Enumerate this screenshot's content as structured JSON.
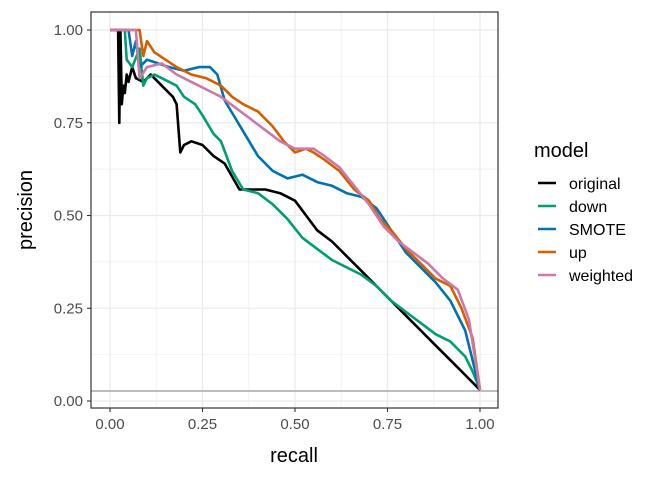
{
  "chart_data": {
    "type": "line",
    "title": "",
    "xlabel": "recall",
    "ylabel": "precision",
    "xlim": [
      0,
      1
    ],
    "ylim": [
      0,
      1
    ],
    "x_ticks": [
      "0.00",
      "0.25",
      "0.50",
      "0.75",
      "1.00"
    ],
    "y_ticks": [
      "0.00",
      "0.25",
      "0.50",
      "0.75",
      "1.00"
    ],
    "grid": true,
    "legend": {
      "title": "model",
      "placement": "right"
    },
    "baseline": {
      "y": 0.027,
      "color": "#bdbdbd"
    },
    "series": [
      {
        "name": "original",
        "color": "#000000",
        "points": [
          [
            0.0,
            1.0
          ],
          [
            0.022,
            1.0
          ],
          [
            0.025,
            0.75
          ],
          [
            0.028,
            1.0
          ],
          [
            0.032,
            0.8
          ],
          [
            0.036,
            0.85
          ],
          [
            0.04,
            0.83
          ],
          [
            0.045,
            0.88
          ],
          [
            0.05,
            0.86
          ],
          [
            0.06,
            0.9
          ],
          [
            0.07,
            0.87
          ],
          [
            0.09,
            0.86
          ],
          [
            0.11,
            0.88
          ],
          [
            0.13,
            0.86
          ],
          [
            0.15,
            0.84
          ],
          [
            0.17,
            0.82
          ],
          [
            0.18,
            0.8
          ],
          [
            0.19,
            0.67
          ],
          [
            0.2,
            0.69
          ],
          [
            0.22,
            0.7
          ],
          [
            0.25,
            0.69
          ],
          [
            0.28,
            0.66
          ],
          [
            0.31,
            0.64
          ],
          [
            0.35,
            0.57
          ],
          [
            0.38,
            0.57
          ],
          [
            0.42,
            0.57
          ],
          [
            0.46,
            0.56
          ],
          [
            0.5,
            0.54
          ],
          [
            0.53,
            0.5
          ],
          [
            0.56,
            0.46
          ],
          [
            0.6,
            0.43
          ],
          [
            0.64,
            0.39
          ],
          [
            0.68,
            0.35
          ],
          [
            0.72,
            0.31
          ],
          [
            0.76,
            0.27
          ],
          [
            0.8,
            0.23
          ],
          [
            0.84,
            0.19
          ],
          [
            0.88,
            0.15
          ],
          [
            0.92,
            0.11
          ],
          [
            0.96,
            0.07
          ],
          [
            1.0,
            0.03
          ]
        ]
      },
      {
        "name": "down",
        "color": "#009E73",
        "points": [
          [
            0.0,
            1.0
          ],
          [
            0.04,
            1.0
          ],
          [
            0.045,
            0.92
          ],
          [
            0.06,
            0.9
          ],
          [
            0.08,
            0.95
          ],
          [
            0.09,
            0.85
          ],
          [
            0.1,
            0.87
          ],
          [
            0.12,
            0.88
          ],
          [
            0.14,
            0.87
          ],
          [
            0.16,
            0.86
          ],
          [
            0.18,
            0.85
          ],
          [
            0.2,
            0.82
          ],
          [
            0.23,
            0.8
          ],
          [
            0.25,
            0.77
          ],
          [
            0.28,
            0.72
          ],
          [
            0.3,
            0.7
          ],
          [
            0.33,
            0.62
          ],
          [
            0.36,
            0.57
          ],
          [
            0.4,
            0.56
          ],
          [
            0.44,
            0.53
          ],
          [
            0.48,
            0.49
          ],
          [
            0.52,
            0.44
          ],
          [
            0.56,
            0.41
          ],
          [
            0.6,
            0.38
          ],
          [
            0.64,
            0.36
          ],
          [
            0.68,
            0.34
          ],
          [
            0.72,
            0.31
          ],
          [
            0.76,
            0.27
          ],
          [
            0.8,
            0.24
          ],
          [
            0.84,
            0.21
          ],
          [
            0.88,
            0.18
          ],
          [
            0.92,
            0.16
          ],
          [
            0.96,
            0.12
          ],
          [
            0.98,
            0.08
          ],
          [
            1.0,
            0.03
          ]
        ]
      },
      {
        "name": "SMOTE",
        "color": "#0072B2",
        "points": [
          [
            0.0,
            1.0
          ],
          [
            0.05,
            1.0
          ],
          [
            0.06,
            0.93
          ],
          [
            0.07,
            0.97
          ],
          [
            0.08,
            0.9
          ],
          [
            0.1,
            0.92
          ],
          [
            0.13,
            0.91
          ],
          [
            0.16,
            0.9
          ],
          [
            0.2,
            0.89
          ],
          [
            0.24,
            0.9
          ],
          [
            0.27,
            0.9
          ],
          [
            0.29,
            0.88
          ],
          [
            0.31,
            0.81
          ],
          [
            0.34,
            0.76
          ],
          [
            0.37,
            0.71
          ],
          [
            0.4,
            0.66
          ],
          [
            0.44,
            0.62
          ],
          [
            0.48,
            0.6
          ],
          [
            0.52,
            0.61
          ],
          [
            0.56,
            0.59
          ],
          [
            0.6,
            0.58
          ],
          [
            0.64,
            0.56
          ],
          [
            0.68,
            0.55
          ],
          [
            0.72,
            0.52
          ],
          [
            0.76,
            0.46
          ],
          [
            0.8,
            0.4
          ],
          [
            0.84,
            0.36
          ],
          [
            0.88,
            0.32
          ],
          [
            0.92,
            0.27
          ],
          [
            0.96,
            0.19
          ],
          [
            1.0,
            0.03
          ]
        ]
      },
      {
        "name": "up",
        "color": "#D55E00",
        "points": [
          [
            0.0,
            1.0
          ],
          [
            0.08,
            1.0
          ],
          [
            0.09,
            0.93
          ],
          [
            0.1,
            0.97
          ],
          [
            0.12,
            0.94
          ],
          [
            0.15,
            0.92
          ],
          [
            0.18,
            0.9
          ],
          [
            0.22,
            0.88
          ],
          [
            0.26,
            0.87
          ],
          [
            0.3,
            0.85
          ],
          [
            0.33,
            0.82
          ],
          [
            0.36,
            0.8
          ],
          [
            0.4,
            0.78
          ],
          [
            0.44,
            0.74
          ],
          [
            0.47,
            0.7
          ],
          [
            0.5,
            0.67
          ],
          [
            0.53,
            0.68
          ],
          [
            0.55,
            0.67
          ],
          [
            0.58,
            0.65
          ],
          [
            0.62,
            0.62
          ],
          [
            0.66,
            0.57
          ],
          [
            0.7,
            0.54
          ],
          [
            0.73,
            0.49
          ],
          [
            0.76,
            0.46
          ],
          [
            0.8,
            0.41
          ],
          [
            0.84,
            0.37
          ],
          [
            0.88,
            0.33
          ],
          [
            0.92,
            0.31
          ],
          [
            0.95,
            0.25
          ],
          [
            0.98,
            0.17
          ],
          [
            1.0,
            0.03
          ]
        ]
      },
      {
        "name": "weighted",
        "color": "#CC79A7",
        "points": [
          [
            0.0,
            1.0
          ],
          [
            0.07,
            1.0
          ],
          [
            0.08,
            0.87
          ],
          [
            0.1,
            0.9
          ],
          [
            0.14,
            0.91
          ],
          [
            0.18,
            0.88
          ],
          [
            0.22,
            0.86
          ],
          [
            0.26,
            0.84
          ],
          [
            0.3,
            0.82
          ],
          [
            0.34,
            0.79
          ],
          [
            0.38,
            0.76
          ],
          [
            0.42,
            0.73
          ],
          [
            0.46,
            0.7
          ],
          [
            0.5,
            0.68
          ],
          [
            0.55,
            0.68
          ],
          [
            0.58,
            0.66
          ],
          [
            0.62,
            0.63
          ],
          [
            0.66,
            0.58
          ],
          [
            0.7,
            0.53
          ],
          [
            0.74,
            0.47
          ],
          [
            0.78,
            0.43
          ],
          [
            0.82,
            0.4
          ],
          [
            0.86,
            0.37
          ],
          [
            0.9,
            0.33
          ],
          [
            0.94,
            0.3
          ],
          [
            0.97,
            0.22
          ],
          [
            1.0,
            0.03
          ]
        ]
      }
    ]
  }
}
